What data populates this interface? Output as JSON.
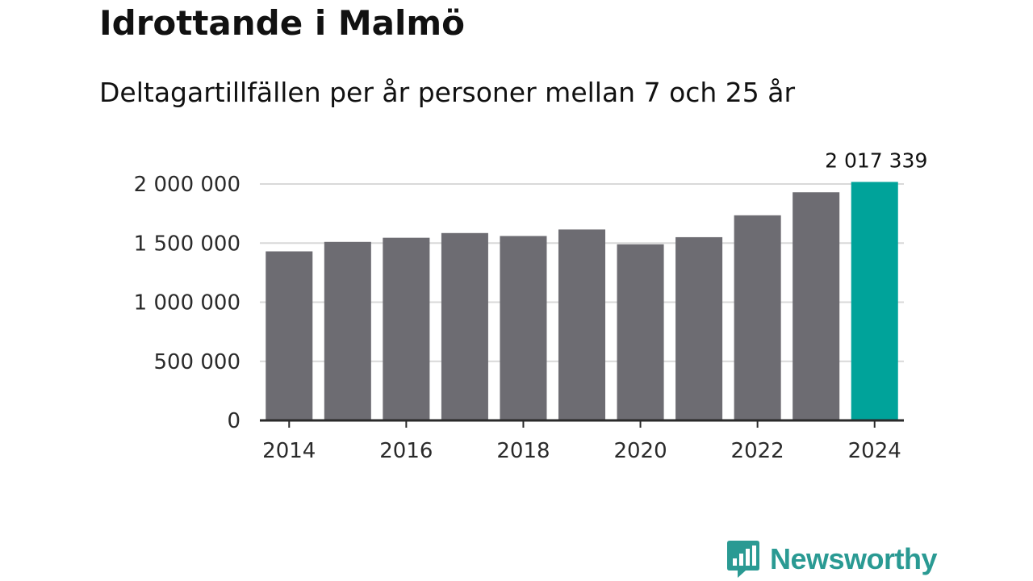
{
  "title": "Idrottande i Malmö",
  "subtitle": "Deltagartillfällen per år personer mellan 7 och 25 år",
  "brand": {
    "name": "Newsworthy",
    "icon": "newsworthy-logo-icon",
    "color": "#2a9a93"
  },
  "colors": {
    "bar": "#6d6c72",
    "highlight": "#00a39a",
    "grid": "#d9d9d9",
    "axis": "#2a2a2a"
  },
  "chart_data": {
    "type": "bar",
    "title": "Idrottande i Malmö",
    "subtitle": "Deltagartillfällen per år personer mellan 7 och 25 år",
    "xlabel": "",
    "ylabel": "",
    "categories": [
      "2014",
      "2015",
      "2016",
      "2017",
      "2018",
      "2019",
      "2020",
      "2021",
      "2022",
      "2023",
      "2024"
    ],
    "values": [
      1430000,
      1510000,
      1545000,
      1585000,
      1560000,
      1615000,
      1490000,
      1550000,
      1735000,
      1930000,
      2017339
    ],
    "highlight_index": 10,
    "highlight_label": "2 017 339",
    "ylim": [
      0,
      2000000
    ],
    "yticks": [
      {
        "value": 0,
        "label": "0"
      },
      {
        "value": 500000,
        "label": "500 000"
      },
      {
        "value": 1000000,
        "label": "1 000 000"
      },
      {
        "value": 1500000,
        "label": "1 500 000"
      },
      {
        "value": 2000000,
        "label": "2 000 000"
      }
    ],
    "xticks": [
      "2014",
      "2016",
      "2018",
      "2020",
      "2022",
      "2024"
    ],
    "grid": true
  }
}
